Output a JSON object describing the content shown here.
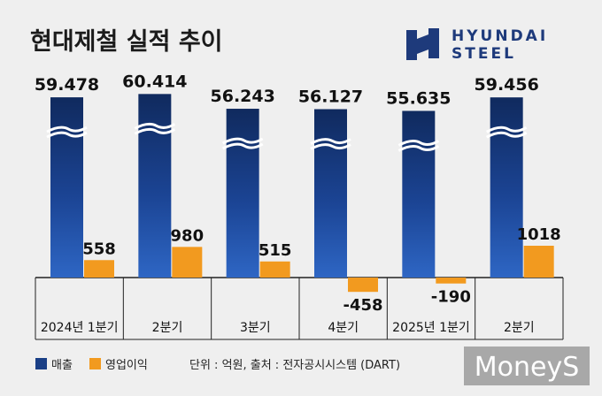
{
  "chart_data": {
    "type": "bar",
    "title": "현대제철 실적 추이",
    "categories": [
      "2024년 1분기",
      "2분기",
      "3분기",
      "4분기",
      "2025년 1분기",
      "2분기"
    ],
    "series": [
      {
        "name": "매출",
        "color": "#1a3f86",
        "values": [
          59478,
          60414,
          56243,
          56127,
          55635,
          59456
        ],
        "labels": [
          "59.478",
          "60.414",
          "56.243",
          "56.127",
          "55.635",
          "59.456"
        ]
      },
      {
        "name": "영업이익",
        "color": "#f29a1f",
        "values": [
          558,
          980,
          515,
          -458,
          -190,
          1018
        ],
        "labels": [
          "558",
          "980",
          "515",
          "-458",
          "-190",
          "1018"
        ]
      }
    ],
    "axis_break": true,
    "unit_note": "단위 : 억원, 출처 : 전자공시시스템 (DART)"
  },
  "logo": {
    "line1": "HYUNDAI",
    "line2": "STEEL",
    "color": "#1e3a7b"
  },
  "watermark": "MoneyS"
}
